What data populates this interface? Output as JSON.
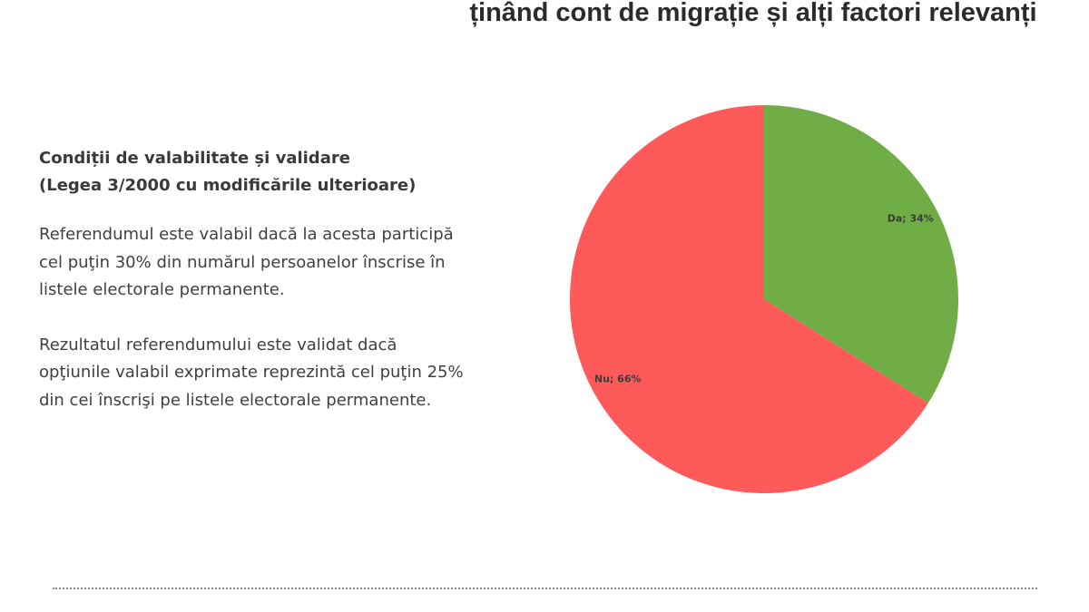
{
  "slide": {
    "title": "ținând cont de migrație și alți factori relevanți"
  },
  "left_panel": {
    "heading_line1": "Condiții de valabilitate și validare",
    "heading_line2": "(Legea 3/2000 cu modificările ulterioare)",
    "paragraph1": "Referendumul este valabil dacă la acesta participă cel puţin 30% din numărul persoanelor înscrise în listele electorale permanente.",
    "paragraph2": "Rezultatul referendumului este validat dacă opţiunile valabil exprimate reprezintă cel puţin 25% din cei înscrişi pe listele electorale permanente."
  },
  "chart_data": {
    "type": "pie",
    "slices": [
      {
        "label": "Da",
        "value": 34,
        "data_label": "Da; 34%",
        "color": "#70ad47"
      },
      {
        "label": "Nu",
        "value": 66,
        "data_label": "Nu; 66%",
        "color": "#ff5a5a"
      }
    ],
    "start_angle_deg": 0,
    "direction": "clockwise"
  }
}
